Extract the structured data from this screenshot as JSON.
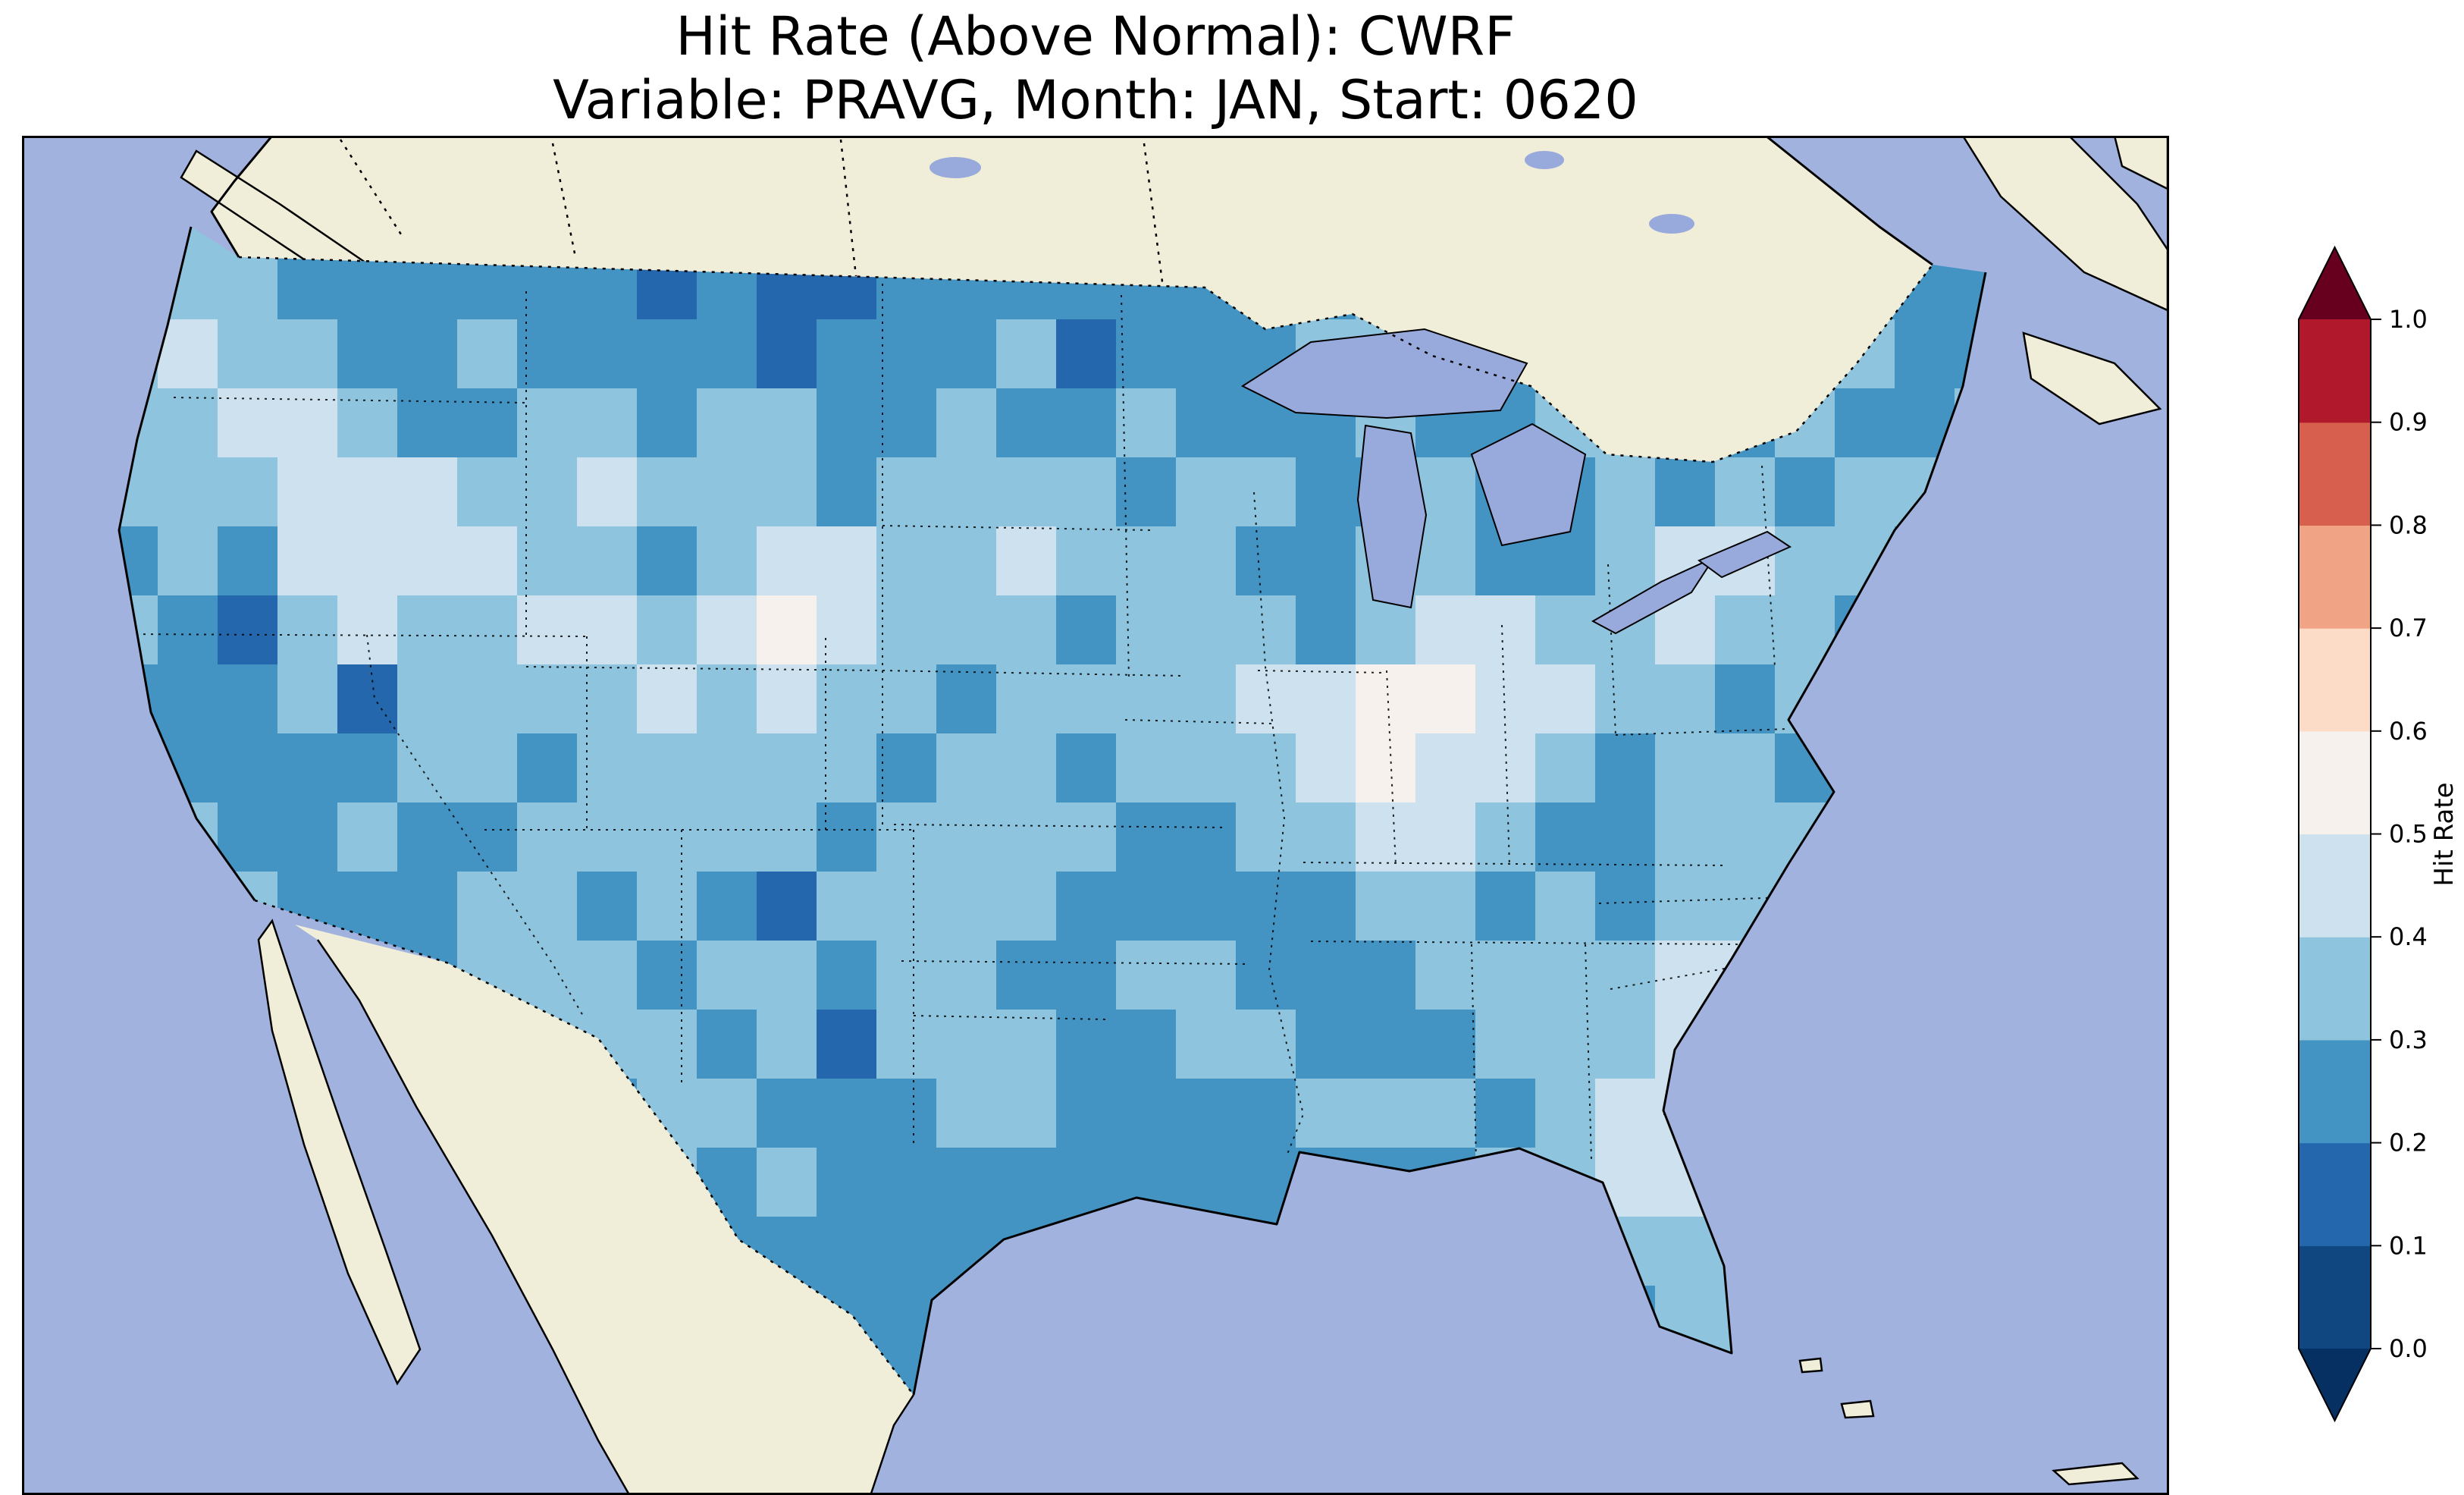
{
  "title": {
    "line1": "Hit Rate (Above Normal): CWRF",
    "line2": "Variable: PRAVG, Month: JAN, Start: 0620"
  },
  "colorbar": {
    "label": "Hit Rate",
    "ticks_top_to_bottom": [
      "1.0",
      "0.9",
      "0.8",
      "0.7",
      "0.6",
      "0.5",
      "0.4",
      "0.3",
      "0.2",
      "0.1",
      "0.0"
    ],
    "segments_bottom_to_top": [
      "#114781",
      "#2467ad",
      "#4393c3",
      "#8ec4dd",
      "#cde2ee",
      "#f6f1ec",
      "#fcdbc7",
      "#f1a385",
      "#d75f4d",
      "#b2182b"
    ],
    "under_color": "#053061",
    "over_color": "#67001f"
  },
  "map_colors": {
    "ocean": "#a2b2df",
    "land": "#f0eed8",
    "lake": "#98a9dc",
    "coastline": "#000000",
    "border_style": "dotted-black"
  },
  "chart_data": {
    "type": "heatmap",
    "title": "Hit Rate (Above Normal): CWRF",
    "subtitle": "Variable: PRAVG, Month: JAN, Start: 0620",
    "metric": "Hit Rate (Above Normal)",
    "model": "CWRF",
    "variable": "PRAVG",
    "month": "JAN",
    "start": "0620",
    "colormap": "RdBu_r (discrete, 0.0 to 1.0 step 0.1, extended both ends)",
    "colorbar_label": "Hit Rate",
    "value_range_shown": [
      0.1,
      0.6
    ],
    "dominant_values": "most of CONUS between 0.2 and 0.4",
    "bin_colors": {
      "1": "#2467ad",
      "2": "#4393c3",
      "3": "#8ec4dd",
      "4": "#cde2ee",
      "5": "#f6f1ec"
    },
    "grid_encoding": "each digit d = hit rate bin [d/10,(d+1)/10); rows run north to south over CONUS, clipped to the US outline",
    "grid_rows": [
      "33333222222222222222333333333333",
      "33322222212112222222233332233222",
      "34332232222122231222332233322322",
      "33443223323322322322232233223223",
      "33344433433323333233223223232332",
      "23244443323443343332233223443322",
      "32134334434543332333234433433222",
      "22231333343433233334455443323222",
      "32222332333332332333454432332233",
      "33223223333323333223344322333233",
      "33322233232133332222233232333323",
      "33332233323323322332223333443333",
      "22333233332313332233222333444333",
      "33333322233222332222333234433333",
      "23232323232322222222222334432222",
      "22222222222222222222222223333222",
      "22222222222222222222222222332222",
      "22222222222222222222222222222222"
    ]
  }
}
